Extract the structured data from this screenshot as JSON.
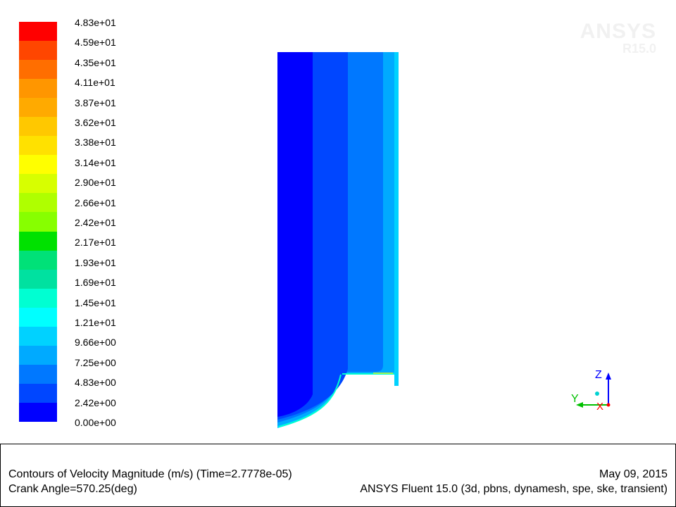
{
  "colormap": {
    "labels": [
      "4.83e+01",
      "4.59e+01",
      "4.35e+01",
      "4.11e+01",
      "3.87e+01",
      "3.62e+01",
      "3.38e+01",
      "3.14e+01",
      "2.90e+01",
      "2.66e+01",
      "2.42e+01",
      "2.17e+01",
      "1.93e+01",
      "1.69e+01",
      "1.45e+01",
      "1.21e+01",
      "9.66e+00",
      "7.25e+00",
      "4.83e+00",
      "2.42e+00",
      "0.00e+00"
    ],
    "colors": [
      "#ff0000",
      "#ff4600",
      "#ff6e00",
      "#ff9600",
      "#ffaa00",
      "#ffc800",
      "#ffe100",
      "#ffff00",
      "#d7ff00",
      "#afff00",
      "#87ff00",
      "#00e100",
      "#00e178",
      "#00e1a0",
      "#00ffd2",
      "#00ffff",
      "#00d2ff",
      "#00aaff",
      "#0078ff",
      "#0046ff",
      "#0000ff"
    ]
  },
  "contour": {
    "colors": {
      "core": "#0000ff",
      "band2": "#0046ff",
      "band3": "#0078ff",
      "band4": "#00aaff",
      "band5": "#00d2ff",
      "edge": "#00ffd2",
      "hot": "#ffff00"
    }
  },
  "axes": {
    "z_label": "Z",
    "y_label": "Y",
    "x_label": "X",
    "z_color": "#0000ff",
    "y_color": "#00c000",
    "x_color": "#ff0000",
    "center_color": "#00d2d2"
  },
  "watermark": {
    "brand": "ANSYS",
    "version": "R15.0"
  },
  "footer": {
    "title": "Contours of Velocity Magnitude (m/s)  (Time=2.7778e-05)",
    "date": "May 09, 2015",
    "crank_angle": "Crank Angle=570.25(deg)",
    "solver": "ANSYS Fluent 15.0 (3d, pbns, dynamesh, spe, ske, transient)"
  }
}
